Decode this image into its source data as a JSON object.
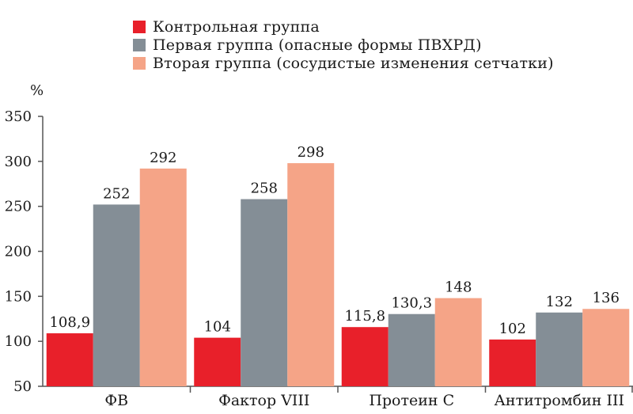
{
  "chart_data": {
    "type": "bar",
    "ylabel": "%",
    "ylim": [
      50,
      350
    ],
    "yticks": [
      50,
      100,
      150,
      200,
      250,
      300,
      350
    ],
    "categories": [
      "ФВ",
      "Фактор VIII",
      "Протеин С",
      "Антитромбин III"
    ],
    "legend_position": "top",
    "grid": false,
    "series": [
      {
        "name": "Контрольная группа",
        "color": "#e8202a",
        "values": [
          108.9,
          104,
          115.8,
          102
        ],
        "labels": [
          "108,9",
          "104",
          "115,8",
          "102"
        ]
      },
      {
        "name": "Первая группа (опасные формы ПВХРД)",
        "color": "#848e96",
        "values": [
          252,
          258,
          130.3,
          132
        ],
        "labels": [
          "252",
          "258",
          "130,3",
          "132"
        ]
      },
      {
        "name": "Вторая группа (сосудистые изменения сетчатки)",
        "color": "#f5a487",
        "values": [
          292,
          298,
          148,
          136
        ],
        "labels": [
          "292",
          "298",
          "148",
          "136"
        ]
      }
    ]
  }
}
